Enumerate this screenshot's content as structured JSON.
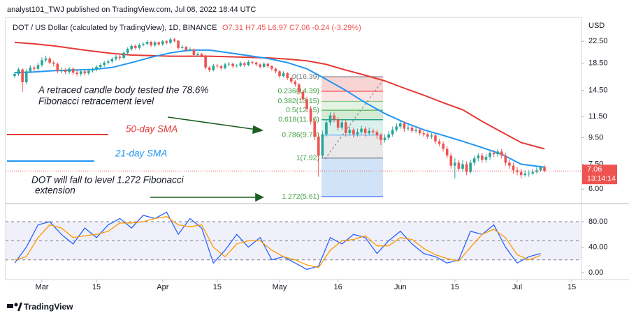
{
  "chart_data": {
    "type": "candlestick",
    "header": "analyst101_TWJ published on TradingView.com, Jul 08, 2022 18:44 UTC",
    "symbol": "DOT / US Dollar (calculated by TradingView), 1D, BINANCE",
    "ohlc_text": "O7.31 H7.45 L6.97 C7.06 -0.24 (-3.29%)",
    "currency": "USD",
    "log_scale": true,
    "grid": false,
    "ylim": [
      5.34,
      27.0
    ],
    "yticks": [
      {
        "value": 22.5,
        "label": "22.50"
      },
      {
        "value": 18.5,
        "label": "18.50"
      },
      {
        "value": 14.5,
        "label": "14.50"
      },
      {
        "value": 11.5,
        "label": "11.50"
      },
      {
        "value": 9.5,
        "label": "9.50"
      },
      {
        "value": 7.5,
        "label": "7.50"
      },
      {
        "value": 6,
        "label": "6.00"
      }
    ],
    "xticks": [
      {
        "value": 7,
        "label": "Mar"
      },
      {
        "value": 21,
        "label": "15"
      },
      {
        "value": 38,
        "label": "Apr"
      },
      {
        "value": 52,
        "label": "15"
      },
      {
        "value": 68,
        "label": "May"
      },
      {
        "value": 83,
        "label": "16"
      },
      {
        "value": 99,
        "label": "Jun"
      },
      {
        "value": 113,
        "label": "15"
      },
      {
        "value": 129,
        "label": "Jul"
      },
      {
        "value": 143,
        "label": "15"
      }
    ],
    "up_color": "#26a69a",
    "down_color": "#ef5350",
    "ohlc": [
      [
        16.5,
        17.1,
        16.2,
        16.8
      ],
      [
        16.8,
        17.8,
        16.5,
        17.5
      ],
      [
        17.5,
        17.7,
        14.3,
        15.6
      ],
      [
        15.6,
        17.5,
        15.3,
        17.2
      ],
      [
        17.2,
        18.2,
        16.9,
        17.8
      ],
      [
        17.8,
        18.1,
        17.2,
        17.6
      ],
      [
        17.6,
        18.6,
        17.3,
        18.2
      ],
      [
        18.2,
        19.5,
        17.9,
        19.0
      ],
      [
        19.0,
        19.8,
        18.7,
        19.3
      ],
      [
        19.3,
        19.6,
        18.3,
        18.6
      ],
      [
        18.6,
        18.9,
        18.0,
        18.4
      ],
      [
        18.4,
        18.6,
        16.9,
        17.2
      ],
      [
        17.2,
        17.8,
        16.9,
        17.4
      ],
      [
        17.4,
        17.7,
        16.8,
        17.1
      ],
      [
        17.1,
        17.9,
        16.8,
        17.6
      ],
      [
        17.6,
        17.8,
        16.7,
        17.0
      ],
      [
        17.0,
        17.3,
        16.5,
        16.8
      ],
      [
        16.8,
        17.5,
        16.5,
        17.2
      ],
      [
        17.2,
        17.4,
        16.6,
        16.9
      ],
      [
        16.9,
        17.6,
        16.6,
        17.3
      ],
      [
        17.3,
        17.8,
        17.0,
        17.5
      ],
      [
        17.5,
        18.2,
        17.2,
        17.9
      ],
      [
        17.9,
        18.5,
        17.6,
        18.2
      ],
      [
        18.2,
        18.9,
        17.9,
        18.6
      ],
      [
        18.6,
        19.1,
        18.3,
        18.8
      ],
      [
        18.8,
        19.5,
        18.5,
        19.2
      ],
      [
        19.2,
        19.9,
        18.9,
        19.6
      ],
      [
        19.6,
        19.9,
        19.0,
        19.4
      ],
      [
        19.4,
        20.6,
        19.2,
        20.3
      ],
      [
        20.3,
        21.3,
        20.0,
        21.0
      ],
      [
        21.0,
        21.9,
        20.7,
        21.6
      ],
      [
        21.6,
        21.9,
        20.9,
        21.2
      ],
      [
        21.2,
        22.1,
        20.9,
        21.8
      ],
      [
        21.8,
        22.3,
        21.5,
        22.0
      ],
      [
        22.0,
        22.8,
        21.7,
        22.4
      ],
      [
        22.4,
        22.6,
        21.4,
        21.7
      ],
      [
        21.7,
        22.6,
        21.4,
        22.3
      ],
      [
        22.3,
        22.5,
        21.6,
        21.9
      ],
      [
        21.9,
        22.8,
        21.6,
        22.5
      ],
      [
        22.5,
        22.8,
        21.9,
        22.2
      ],
      [
        22.2,
        23.3,
        22.0,
        22.9
      ],
      [
        22.9,
        23.2,
        22.3,
        22.6
      ],
      [
        22.6,
        22.8,
        20.9,
        21.2
      ],
      [
        21.2,
        21.8,
        20.9,
        21.4
      ],
      [
        21.4,
        21.6,
        20.5,
        20.8
      ],
      [
        20.8,
        21.3,
        20.5,
        20.9
      ],
      [
        20.9,
        21.1,
        19.6,
        19.9
      ],
      [
        19.9,
        20.4,
        19.6,
        20.1
      ],
      [
        20.1,
        20.3,
        19.5,
        19.8
      ],
      [
        19.8,
        20.0,
        17.5,
        17.8
      ],
      [
        17.8,
        18.0,
        17.1,
        17.4
      ],
      [
        17.4,
        18.4,
        17.2,
        18.1
      ],
      [
        18.1,
        18.4,
        17.7,
        18.0
      ],
      [
        18.0,
        18.2,
        17.4,
        17.7
      ],
      [
        17.7,
        18.6,
        17.5,
        18.3
      ],
      [
        18.3,
        18.7,
        18.0,
        18.4
      ],
      [
        18.4,
        18.6,
        17.7,
        18.0
      ],
      [
        18.0,
        18.4,
        17.8,
        18.1
      ],
      [
        18.1,
        18.8,
        17.9,
        18.5
      ],
      [
        18.5,
        18.7,
        17.9,
        18.2
      ],
      [
        18.2,
        19.0,
        18.0,
        18.7
      ],
      [
        18.7,
        18.9,
        18.3,
        18.6
      ],
      [
        18.6,
        18.8,
        18.0,
        18.3
      ],
      [
        18.3,
        18.5,
        17.6,
        17.9
      ],
      [
        17.9,
        18.7,
        17.7,
        18.4
      ],
      [
        18.4,
        18.6,
        17.7,
        18.0
      ],
      [
        18.0,
        18.2,
        17.3,
        17.6
      ],
      [
        17.6,
        17.8,
        16.9,
        17.2
      ],
      [
        17.2,
        17.4,
        16.2,
        16.5
      ],
      [
        16.5,
        17.2,
        16.3,
        16.9
      ],
      [
        16.9,
        17.1,
        15.9,
        16.2
      ],
      [
        16.2,
        16.4,
        15.4,
        15.7
      ],
      [
        15.7,
        15.9,
        15.0,
        15.3
      ],
      [
        15.3,
        15.5,
        14.0,
        14.3
      ],
      [
        14.3,
        14.6,
        13.1,
        13.4
      ],
      [
        13.4,
        13.7,
        12.0,
        12.3
      ],
      [
        12.3,
        12.6,
        10.7,
        11.0
      ],
      [
        11.0,
        11.3,
        9.3,
        9.6
      ],
      [
        9.6,
        9.9,
        6.7,
        8.1
      ],
      [
        8.1,
        10.1,
        7.9,
        9.8
      ],
      [
        9.8,
        11.2,
        9.6,
        10.9
      ],
      [
        10.9,
        11.9,
        10.6,
        11.6
      ],
      [
        11.6,
        11.9,
        10.9,
        11.2
      ],
      [
        11.2,
        11.4,
        10.1,
        10.4
      ],
      [
        10.4,
        11.2,
        10.2,
        10.9
      ],
      [
        10.9,
        11.1,
        9.6,
        9.9
      ],
      [
        9.9,
        10.5,
        9.7,
        10.2
      ],
      [
        10.2,
        10.4,
        9.5,
        9.8
      ],
      [
        9.8,
        10.3,
        9.6,
        10.0
      ],
      [
        10.0,
        10.6,
        9.8,
        10.3
      ],
      [
        10.3,
        10.5,
        9.6,
        9.9
      ],
      [
        9.9,
        10.4,
        9.7,
        10.1
      ],
      [
        10.1,
        10.3,
        9.8,
        10.0
      ],
      [
        10.0,
        10.2,
        9.4,
        9.7
      ],
      [
        9.7,
        9.9,
        8.9,
        9.3
      ],
      [
        9.3,
        9.8,
        9.1,
        9.5
      ],
      [
        9.5,
        10.1,
        9.3,
        9.8
      ],
      [
        9.8,
        10.5,
        9.6,
        10.2
      ],
      [
        10.2,
        10.8,
        10.0,
        10.5
      ],
      [
        10.5,
        11.1,
        10.3,
        10.8
      ],
      [
        10.8,
        11.0,
        10.0,
        10.3
      ],
      [
        10.3,
        10.7,
        10.1,
        10.4
      ],
      [
        10.4,
        10.6,
        9.9,
        10.1
      ],
      [
        10.1,
        10.5,
        9.9,
        10.2
      ],
      [
        10.2,
        10.4,
        9.7,
        9.9
      ],
      [
        9.9,
        10.1,
        9.6,
        9.8
      ],
      [
        9.8,
        10.0,
        9.4,
        9.6
      ],
      [
        9.6,
        9.9,
        9.4,
        9.7
      ],
      [
        9.7,
        9.9,
        9.0,
        9.2
      ],
      [
        9.2,
        9.4,
        8.8,
        9.0
      ],
      [
        9.0,
        9.2,
        8.4,
        8.6
      ],
      [
        8.6,
        8.8,
        7.9,
        8.1
      ],
      [
        8.1,
        8.3,
        7.2,
        7.4
      ],
      [
        7.4,
        7.9,
        6.6,
        7.6
      ],
      [
        7.6,
        7.8,
        7.0,
        7.2
      ],
      [
        7.2,
        7.8,
        7.0,
        7.5
      ],
      [
        7.5,
        7.7,
        6.8,
        7.0
      ],
      [
        7.0,
        7.8,
        6.9,
        7.6
      ],
      [
        7.6,
        8.1,
        7.4,
        7.9
      ],
      [
        7.9,
        8.3,
        7.7,
        8.1
      ],
      [
        8.1,
        8.3,
        7.6,
        7.8
      ],
      [
        7.8,
        8.2,
        7.6,
        8.0
      ],
      [
        8.0,
        8.5,
        7.8,
        8.3
      ],
      [
        8.3,
        8.5,
        8.0,
        8.2
      ],
      [
        8.2,
        8.6,
        8.0,
        8.4
      ],
      [
        8.4,
        8.6,
        7.9,
        8.1
      ],
      [
        8.1,
        8.3,
        7.4,
        7.6
      ],
      [
        7.6,
        7.8,
        7.2,
        7.4
      ],
      [
        7.4,
        7.6,
        6.9,
        7.1
      ],
      [
        7.1,
        7.3,
        6.8,
        7.0
      ],
      [
        7.0,
        7.2,
        6.6,
        6.8
      ],
      [
        6.8,
        7.1,
        6.7,
        6.9
      ],
      [
        6.9,
        7.1,
        6.7,
        6.9
      ],
      [
        6.9,
        7.2,
        6.8,
        7.0
      ],
      [
        7.0,
        7.3,
        6.9,
        7.1
      ],
      [
        7.1,
        7.4,
        7.0,
        7.31
      ],
      [
        7.31,
        7.45,
        6.97,
        7.06
      ]
    ],
    "series": [
      {
        "name": "50-day SMA",
        "color": "#e53935",
        "x": [
          0,
          5,
          10,
          15,
          20,
          25,
          30,
          35,
          40,
          45,
          50,
          55,
          60,
          65,
          70,
          75,
          80,
          85,
          90,
          95,
          100,
          105,
          110,
          115,
          120,
          125,
          130,
          136
        ],
        "values": [
          22.3,
          22.0,
          21.6,
          21.1,
          20.6,
          20.2,
          19.9,
          19.8,
          19.7,
          19.7,
          19.7,
          19.6,
          19.5,
          19.4,
          19.2,
          18.9,
          18.3,
          17.4,
          16.6,
          15.8,
          14.8,
          13.9,
          13.0,
          12.2,
          11.0,
          10.0,
          9.1,
          8.6
        ]
      },
      {
        "name": "21-day SMA",
        "color": "#2196f3",
        "x": [
          0,
          5,
          10,
          15,
          20,
          25,
          30,
          35,
          40,
          45,
          50,
          55,
          60,
          65,
          70,
          75,
          80,
          85,
          90,
          95,
          100,
          105,
          110,
          115,
          120,
          125,
          130,
          136
        ],
        "values": [
          17.0,
          17.1,
          17.3,
          17.4,
          17.5,
          17.8,
          18.6,
          19.5,
          20.3,
          20.8,
          20.8,
          20.3,
          19.8,
          19.3,
          18.6,
          17.6,
          16.0,
          14.5,
          13.0,
          11.8,
          10.9,
          10.2,
          9.7,
          9.2,
          8.7,
          8.2,
          7.5,
          7.3
        ]
      }
    ],
    "fib_levels": [
      {
        "label": "0(16.39)",
        "value": 16.39
      },
      {
        "label": "0.236(14.39)",
        "value": 14.39
      },
      {
        "label": "0.382(13.15)",
        "value": 13.15
      },
      {
        "label": "0.5(12.15)",
        "value": 12.15
      },
      {
        "label": "0.618(11.16)",
        "value": 11.16
      },
      {
        "label": "0.786(9.73)",
        "value": 9.73
      },
      {
        "label": "1(7.92)",
        "value": 7.92
      },
      {
        "label": "1.272(5.61)",
        "value": 5.61
      }
    ],
    "last_price": 7.06,
    "countdown": "13:14:14",
    "annotations": [
      "A retraced candle body tested the 78.6%",
      "Fibonacci retracement level",
      "DOT will fall to level 1.272 Fibonacci",
      "extension"
    ],
    "oscillator": {
      "ylim": [
        -9.9,
        105.2
      ],
      "yticks": [
        {
          "value": 80,
          "label": "80.00"
        },
        {
          "value": 40,
          "label": "40.00"
        },
        {
          "value": 0,
          "label": "0.00"
        }
      ],
      "levels": [
        80,
        50,
        20
      ],
      "series": [
        {
          "color": "#2962ff",
          "x": [
            0,
            3,
            6,
            9,
            12,
            15,
            18,
            21,
            24,
            27,
            30,
            33,
            36,
            39,
            42,
            45,
            48,
            51,
            54,
            57,
            60,
            63,
            66,
            69,
            72,
            75,
            78,
            81,
            84,
            87,
            90,
            93,
            96,
            99,
            102,
            105,
            108,
            111,
            114,
            117,
            120,
            123,
            126,
            129,
            132,
            135
          ],
          "values": [
            15,
            40,
            75,
            80,
            60,
            45,
            70,
            55,
            75,
            85,
            70,
            90,
            85,
            95,
            60,
            85,
            70,
            15,
            35,
            60,
            40,
            55,
            20,
            25,
            15,
            5,
            10,
            55,
            45,
            60,
            55,
            30,
            50,
            65,
            45,
            30,
            25,
            15,
            20,
            65,
            60,
            75,
            40,
            15,
            25,
            30
          ]
        },
        {
          "color": "#ff9800",
          "x": [
            0,
            3,
            6,
            9,
            12,
            15,
            18,
            21,
            24,
            27,
            30,
            33,
            36,
            39,
            42,
            45,
            48,
            51,
            54,
            57,
            60,
            63,
            66,
            69,
            72,
            75,
            78,
            81,
            84,
            87,
            90,
            93,
            96,
            99,
            102,
            105,
            108,
            111,
            114,
            117,
            120,
            123,
            126,
            129,
            132,
            135
          ],
          "values": [
            20,
            25,
            55,
            75,
            70,
            55,
            58,
            60,
            65,
            78,
            78,
            80,
            85,
            88,
            75,
            72,
            75,
            40,
            25,
            45,
            50,
            50,
            35,
            25,
            20,
            12,
            8,
            35,
            50,
            52,
            58,
            42,
            42,
            55,
            52,
            38,
            28,
            22,
            18,
            40,
            60,
            68,
            55,
            28,
            20,
            27
          ]
        }
      ]
    },
    "footer": "TradingView"
  }
}
